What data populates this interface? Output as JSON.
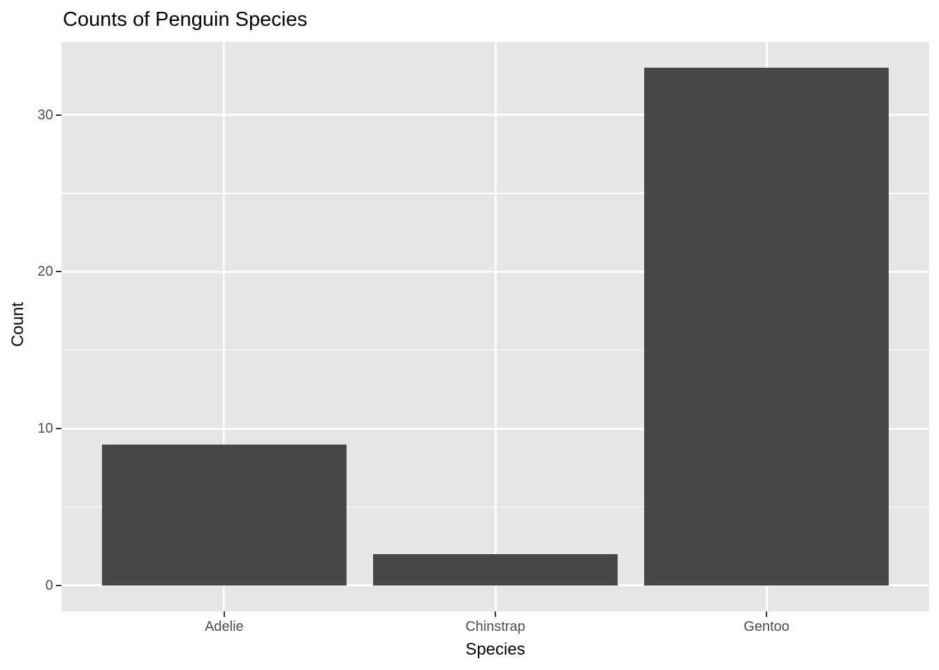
{
  "chart_data": {
    "type": "bar",
    "title": "Counts of Penguin Species",
    "xlabel": "Species",
    "ylabel": "Count",
    "categories": [
      "Adelie",
      "Chinstrap",
      "Gentoo"
    ],
    "values": [
      9,
      2,
      33
    ],
    "yticks": [
      0,
      10,
      20,
      30
    ],
    "yminor_ticks": [
      5,
      15,
      25
    ],
    "ylim": [
      -1.65,
      34.65
    ],
    "grid": "on",
    "legend_position": "none",
    "colors": {
      "bar_fill": "#474747",
      "panel_background": "#E6E6E6",
      "gridline": "#FFFFFF",
      "tick_mark": "#333333",
      "tick_label": "#4D4D4D",
      "axis_title": "#000000",
      "plot_title": "#000000",
      "page_background": "#FFFFFF"
    }
  }
}
